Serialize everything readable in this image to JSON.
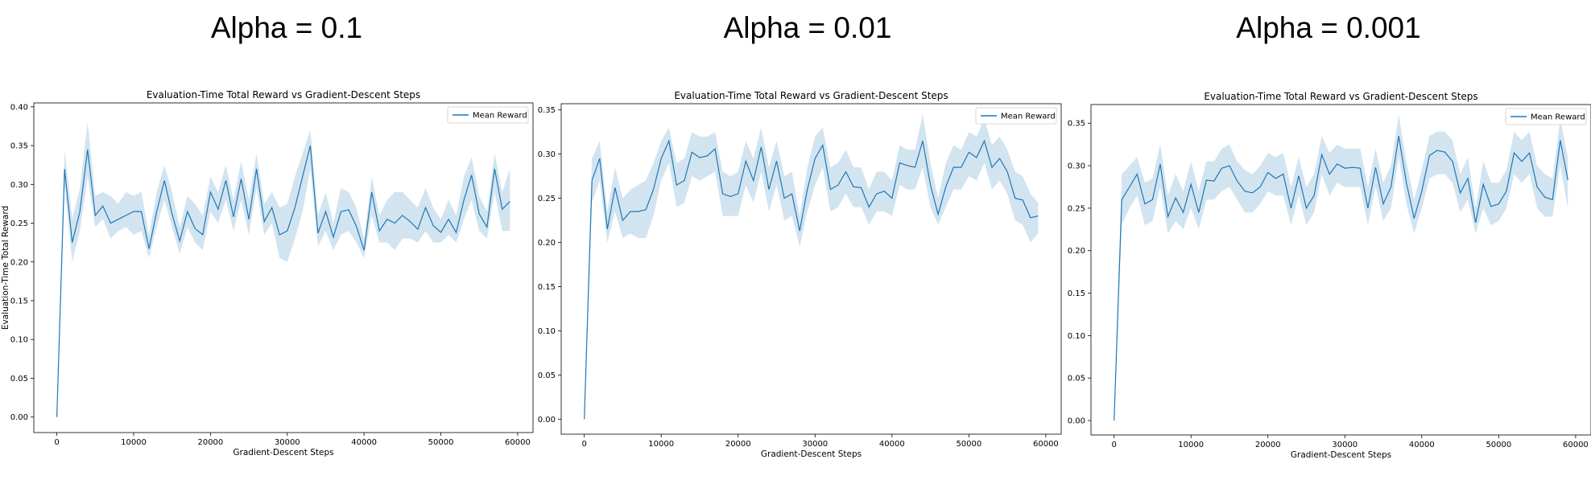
{
  "panels": [
    {
      "heading": "Alpha = 0.1"
    },
    {
      "heading": "Alpha = 0.01"
    },
    {
      "heading": "Alpha = 0.001"
    }
  ],
  "chart_data": [
    {
      "type": "line",
      "title": "Evaluation-Time Total Reward vs Gradient-Descent Steps",
      "xlabel": "Gradient-Descent Steps",
      "ylabel": "Evaluation-Time Total Reward",
      "xlim": [
        -3000,
        62000
      ],
      "ylim": [
        -0.02,
        0.405
      ],
      "xticks": [
        0,
        10000,
        20000,
        30000,
        40000,
        50000,
        60000
      ],
      "yticks": [
        0.0,
        0.05,
        0.1,
        0.15,
        0.2,
        0.25,
        0.3,
        0.35,
        0.4
      ],
      "ytick_labels": [
        "0.00",
        "0.05",
        "0.10",
        "0.15",
        "0.20",
        "0.25",
        "0.30",
        "0.35",
        "0.40"
      ],
      "legend": "top-right",
      "color": "#1f77b4",
      "band_color": "#1f77b4",
      "series": [
        {
          "name": "Mean Reward",
          "x": [
            0,
            1000,
            2000,
            3000,
            4000,
            5000,
            6000,
            7000,
            8000,
            9000,
            10000,
            11000,
            12000,
            13000,
            14000,
            15000,
            16000,
            17000,
            18000,
            19000,
            20000,
            21000,
            22000,
            23000,
            24000,
            25000,
            26000,
            27000,
            28000,
            29000,
            30000,
            31000,
            32000,
            33000,
            34000,
            35000,
            36000,
            37000,
            38000,
            39000,
            40000,
            41000,
            42000,
            43000,
            44000,
            45000,
            46000,
            47000,
            48000,
            49000,
            50000,
            51000,
            52000,
            53000,
            54000,
            55000,
            56000,
            57000,
            58000,
            59000
          ],
          "y": [
            0.0,
            0.32,
            0.225,
            0.265,
            0.345,
            0.26,
            0.272,
            0.25,
            0.255,
            0.26,
            0.265,
            0.265,
            0.217,
            0.265,
            0.305,
            0.262,
            0.227,
            0.265,
            0.243,
            0.235,
            0.29,
            0.268,
            0.305,
            0.258,
            0.307,
            0.255,
            0.32,
            0.252,
            0.27,
            0.235,
            0.24,
            0.27,
            0.31,
            0.35,
            0.237,
            0.265,
            0.232,
            0.265,
            0.267,
            0.246,
            0.215,
            0.29,
            0.24,
            0.255,
            0.25,
            0.26,
            0.252,
            0.242,
            0.27,
            0.247,
            0.238,
            0.255,
            0.238,
            0.28,
            0.312,
            0.262,
            0.245,
            0.32,
            0.268,
            0.278
          ],
          "lower": [
            0.0,
            0.3,
            0.2,
            0.24,
            0.31,
            0.245,
            0.255,
            0.23,
            0.24,
            0.245,
            0.235,
            0.24,
            0.205,
            0.245,
            0.28,
            0.245,
            0.21,
            0.245,
            0.225,
            0.215,
            0.265,
            0.25,
            0.28,
            0.24,
            0.28,
            0.235,
            0.295,
            0.235,
            0.25,
            0.205,
            0.2,
            0.23,
            0.265,
            0.32,
            0.22,
            0.24,
            0.215,
            0.235,
            0.24,
            0.225,
            0.205,
            0.26,
            0.225,
            0.225,
            0.215,
            0.23,
            0.23,
            0.225,
            0.24,
            0.225,
            0.225,
            0.235,
            0.225,
            0.255,
            0.28,
            0.24,
            0.23,
            0.29,
            0.24,
            0.24
          ],
          "upper": [
            0.0,
            0.345,
            0.255,
            0.295,
            0.38,
            0.285,
            0.29,
            0.285,
            0.275,
            0.29,
            0.285,
            0.29,
            0.235,
            0.29,
            0.325,
            0.29,
            0.245,
            0.285,
            0.275,
            0.26,
            0.31,
            0.29,
            0.325,
            0.28,
            0.33,
            0.28,
            0.34,
            0.275,
            0.29,
            0.27,
            0.275,
            0.31,
            0.34,
            0.37,
            0.26,
            0.29,
            0.25,
            0.295,
            0.29,
            0.27,
            0.23,
            0.31,
            0.26,
            0.28,
            0.29,
            0.29,
            0.28,
            0.27,
            0.295,
            0.27,
            0.255,
            0.28,
            0.26,
            0.31,
            0.335,
            0.285,
            0.265,
            0.34,
            0.29,
            0.32
          ]
        }
      ]
    },
    {
      "type": "line",
      "title": "Evaluation-Time Total Reward vs Gradient-Descent Steps",
      "xlabel": "Gradient-Descent Steps",
      "ylabel": "",
      "xlim": [
        -3000,
        62000
      ],
      "ylim": [
        -0.017,
        0.357
      ],
      "xticks": [
        0,
        10000,
        20000,
        30000,
        40000,
        50000,
        60000
      ],
      "yticks": [
        0.0,
        0.05,
        0.1,
        0.15,
        0.2,
        0.25,
        0.3,
        0.35
      ],
      "ytick_labels": [
        "0.00",
        "0.05",
        "0.10",
        "0.15",
        "0.20",
        "0.25",
        "0.30",
        "0.35"
      ],
      "legend": "top-right",
      "color": "#1f77b4",
      "band_color": "#1f77b4",
      "series": [
        {
          "name": "Mean Reward",
          "x": [
            0,
            1000,
            2000,
            3000,
            4000,
            5000,
            6000,
            7000,
            8000,
            9000,
            10000,
            11000,
            12000,
            13000,
            14000,
            15000,
            16000,
            17000,
            18000,
            19000,
            20000,
            21000,
            22000,
            23000,
            24000,
            25000,
            26000,
            27000,
            28000,
            29000,
            30000,
            31000,
            32000,
            33000,
            34000,
            35000,
            36000,
            37000,
            38000,
            39000,
            40000,
            41000,
            42000,
            43000,
            44000,
            45000,
            46000,
            47000,
            48000,
            49000,
            50000,
            51000,
            52000,
            53000,
            54000,
            55000,
            56000,
            57000,
            58000,
            59000
          ],
          "y": [
            0.0,
            0.27,
            0.295,
            0.215,
            0.262,
            0.225,
            0.235,
            0.235,
            0.237,
            0.26,
            0.295,
            0.315,
            0.265,
            0.27,
            0.302,
            0.296,
            0.298,
            0.306,
            0.255,
            0.252,
            0.255,
            0.292,
            0.27,
            0.308,
            0.26,
            0.292,
            0.25,
            0.255,
            0.213,
            0.26,
            0.295,
            0.31,
            0.26,
            0.265,
            0.28,
            0.263,
            0.262,
            0.24,
            0.255,
            0.258,
            0.25,
            0.29,
            0.287,
            0.285,
            0.315,
            0.265,
            0.232,
            0.263,
            0.285,
            0.285,
            0.302,
            0.296,
            0.315,
            0.285,
            0.295,
            0.28,
            0.25,
            0.248,
            0.228,
            0.23
          ],
          "lower": [
            0.0,
            0.245,
            0.27,
            0.2,
            0.235,
            0.205,
            0.21,
            0.205,
            0.205,
            0.23,
            0.27,
            0.29,
            0.24,
            0.245,
            0.275,
            0.27,
            0.275,
            0.28,
            0.23,
            0.23,
            0.23,
            0.265,
            0.245,
            0.28,
            0.235,
            0.265,
            0.225,
            0.23,
            0.195,
            0.235,
            0.265,
            0.285,
            0.235,
            0.24,
            0.255,
            0.24,
            0.24,
            0.22,
            0.235,
            0.235,
            0.23,
            0.265,
            0.26,
            0.26,
            0.285,
            0.24,
            0.22,
            0.24,
            0.26,
            0.26,
            0.275,
            0.27,
            0.29,
            0.26,
            0.27,
            0.255,
            0.225,
            0.22,
            0.2,
            0.21
          ],
          "upper": [
            0.0,
            0.295,
            0.315,
            0.235,
            0.285,
            0.25,
            0.26,
            0.265,
            0.27,
            0.29,
            0.315,
            0.33,
            0.29,
            0.295,
            0.325,
            0.32,
            0.32,
            0.325,
            0.28,
            0.275,
            0.28,
            0.315,
            0.295,
            0.33,
            0.285,
            0.315,
            0.275,
            0.28,
            0.23,
            0.285,
            0.32,
            0.33,
            0.285,
            0.29,
            0.305,
            0.285,
            0.285,
            0.26,
            0.28,
            0.28,
            0.27,
            0.31,
            0.305,
            0.305,
            0.345,
            0.29,
            0.25,
            0.29,
            0.31,
            0.305,
            0.325,
            0.32,
            0.34,
            0.31,
            0.32,
            0.305,
            0.28,
            0.275,
            0.255,
            0.245
          ]
        }
      ]
    },
    {
      "type": "line",
      "title": "Evaluation-Time Total Reward vs Gradient-Descent Steps",
      "xlabel": "Gradient-Descent Steps",
      "ylabel": "",
      "xlim": [
        -3000,
        62000
      ],
      "ylim": [
        -0.017,
        0.372
      ],
      "xticks": [
        0,
        10000,
        20000,
        30000,
        40000,
        50000,
        60000
      ],
      "yticks": [
        0.0,
        0.05,
        0.1,
        0.15,
        0.2,
        0.25,
        0.3,
        0.35
      ],
      "ytick_labels": [
        "0.00",
        "0.05",
        "0.10",
        "0.15",
        "0.20",
        "0.25",
        "0.30",
        "0.35"
      ],
      "legend": "top-right",
      "color": "#1f77b4",
      "band_color": "#1f77b4",
      "series": [
        {
          "name": "Mean Reward",
          "x": [
            0,
            1000,
            2000,
            3000,
            4000,
            5000,
            6000,
            7000,
            8000,
            9000,
            10000,
            11000,
            12000,
            13000,
            14000,
            15000,
            16000,
            17000,
            18000,
            19000,
            20000,
            21000,
            22000,
            23000,
            24000,
            25000,
            26000,
            27000,
            28000,
            29000,
            30000,
            31000,
            32000,
            33000,
            34000,
            35000,
            36000,
            37000,
            38000,
            39000,
            40000,
            41000,
            42000,
            43000,
            44000,
            45000,
            46000,
            47000,
            48000,
            49000,
            50000,
            51000,
            52000,
            53000,
            54000,
            55000,
            56000,
            57000,
            58000,
            59000
          ],
          "y": [
            0.0,
            0.26,
            0.275,
            0.29,
            0.255,
            0.26,
            0.302,
            0.24,
            0.262,
            0.245,
            0.278,
            0.245,
            0.283,
            0.282,
            0.297,
            0.3,
            0.282,
            0.27,
            0.268,
            0.275,
            0.292,
            0.285,
            0.29,
            0.25,
            0.288,
            0.25,
            0.265,
            0.313,
            0.29,
            0.302,
            0.297,
            0.298,
            0.297,
            0.25,
            0.298,
            0.255,
            0.275,
            0.335,
            0.28,
            0.238,
            0.27,
            0.312,
            0.318,
            0.316,
            0.305,
            0.268,
            0.285,
            0.233,
            0.278,
            0.252,
            0.255,
            0.27,
            0.315,
            0.305,
            0.315,
            0.275,
            0.263,
            0.26,
            0.33,
            0.283
          ],
          "lower": [
            0.0,
            0.23,
            0.25,
            0.265,
            0.23,
            0.235,
            0.275,
            0.22,
            0.235,
            0.225,
            0.25,
            0.225,
            0.26,
            0.26,
            0.27,
            0.275,
            0.26,
            0.245,
            0.245,
            0.255,
            0.27,
            0.265,
            0.265,
            0.23,
            0.265,
            0.23,
            0.245,
            0.29,
            0.265,
            0.28,
            0.275,
            0.275,
            0.275,
            0.23,
            0.275,
            0.235,
            0.25,
            0.31,
            0.255,
            0.22,
            0.25,
            0.285,
            0.29,
            0.29,
            0.28,
            0.245,
            0.26,
            0.22,
            0.25,
            0.23,
            0.235,
            0.25,
            0.29,
            0.28,
            0.29,
            0.25,
            0.24,
            0.24,
            0.3,
            0.25
          ],
          "upper": [
            0.0,
            0.29,
            0.3,
            0.31,
            0.28,
            0.285,
            0.325,
            0.265,
            0.29,
            0.27,
            0.305,
            0.27,
            0.305,
            0.305,
            0.32,
            0.325,
            0.305,
            0.295,
            0.29,
            0.3,
            0.315,
            0.31,
            0.315,
            0.275,
            0.31,
            0.275,
            0.29,
            0.335,
            0.315,
            0.325,
            0.32,
            0.32,
            0.32,
            0.275,
            0.32,
            0.28,
            0.3,
            0.36,
            0.305,
            0.26,
            0.295,
            0.335,
            0.34,
            0.34,
            0.33,
            0.29,
            0.31,
            0.25,
            0.305,
            0.28,
            0.28,
            0.295,
            0.34,
            0.33,
            0.34,
            0.3,
            0.29,
            0.285,
            0.355,
            0.31
          ]
        }
      ]
    }
  ]
}
